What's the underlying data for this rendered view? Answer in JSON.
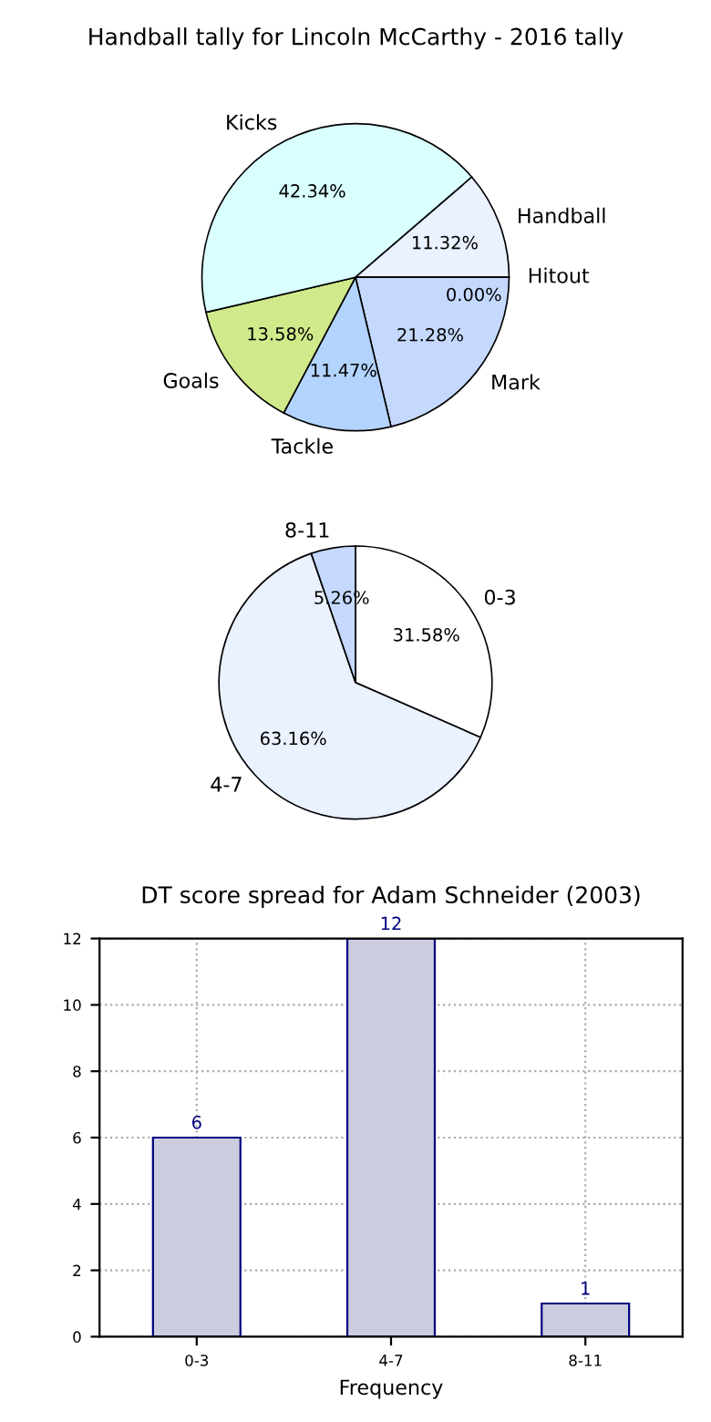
{
  "chart_data": [
    {
      "type": "pie",
      "title": "Handball tally for Lincoln McCarthy - 2016 tally",
      "categories": [
        "Mark",
        "Tackle",
        "Goals",
        "Kicks",
        "Handball",
        "Hitout"
      ],
      "values": [
        21.28,
        11.47,
        13.58,
        42.34,
        11.32,
        0.0
      ],
      "colors": [
        "#c5d9ff",
        "#b3d4ff",
        "#d0e98a",
        "#d9ffff",
        "#eaf1ff",
        "#f4f8ff"
      ],
      "value_labels": [
        "21.28%",
        "11.47%",
        "13.58%",
        "42.34%",
        "11.32%",
        "0.00%"
      ]
    },
    {
      "type": "pie",
      "categories": [
        "0-3",
        "4-7",
        "8-11"
      ],
      "values": [
        31.58,
        63.16,
        5.26
      ],
      "colors": [
        "#ffffff",
        "#eaf1ff",
        "#c5d9ff"
      ],
      "value_labels": [
        "31.58%",
        "63.16%",
        "5.26%"
      ]
    },
    {
      "type": "bar",
      "title": "DT score spread for Adam Schneider (2003)",
      "xlabel": "Frequency",
      "categories": [
        "0-3",
        "4-7",
        "8-11"
      ],
      "values": [
        6,
        12,
        1
      ],
      "color": "#ccccdf",
      "ylim": [
        0,
        12
      ],
      "yticks": [
        0,
        2,
        4,
        6,
        8,
        10,
        12
      ],
      "grid": true,
      "data_labels": true
    }
  ]
}
